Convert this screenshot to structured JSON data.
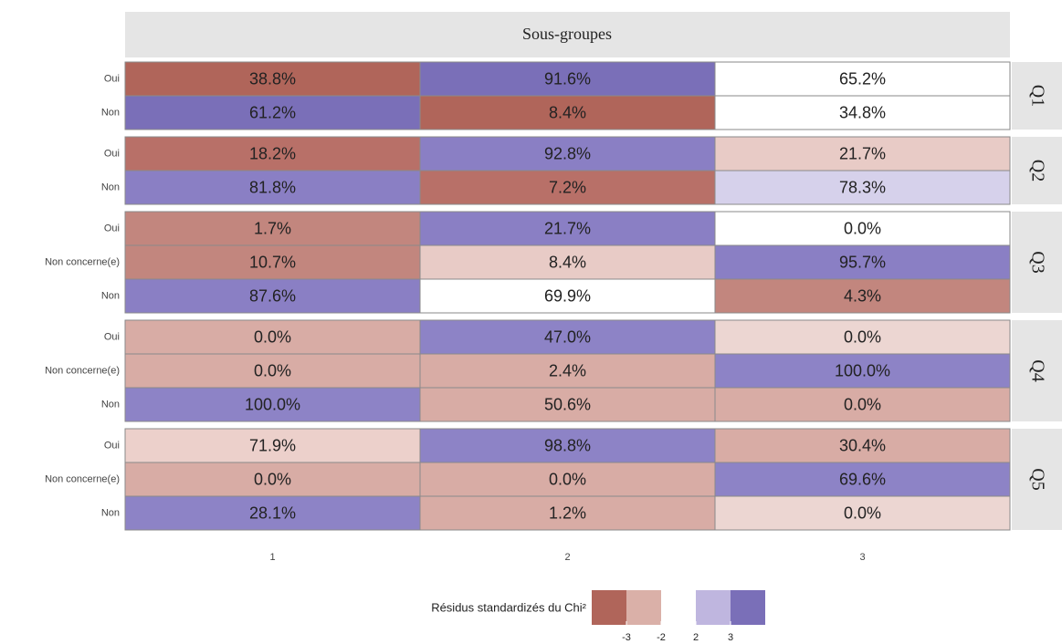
{
  "chart_data": {
    "type": "heatmap",
    "title": "Sous-groupes",
    "columns": [
      "1",
      "2",
      "3"
    ],
    "panels": [
      {
        "name": "Q1",
        "rows": [
          "Oui",
          "Non"
        ],
        "values": [
          [
            38.8,
            91.6,
            65.2
          ],
          [
            61.2,
            8.4,
            34.8
          ]
        ],
        "value_labels": [
          [
            "38.8%",
            "91.6%",
            "65.2%"
          ],
          [
            "61.2%",
            "8.4%",
            "34.8%"
          ]
        ],
        "colors": [
          [
            "#b0655a",
            "#7a6fb8",
            "#ffffff"
          ],
          [
            "#7a6fb8",
            "#b0655a",
            "#ffffff"
          ]
        ]
      },
      {
        "name": "Q2",
        "rows": [
          "Oui",
          "Non"
        ],
        "values": [
          [
            18.2,
            92.8,
            21.7
          ],
          [
            81.8,
            7.2,
            78.3
          ]
        ],
        "value_labels": [
          [
            "18.2%",
            "92.8%",
            "21.7%"
          ],
          [
            "81.8%",
            "7.2%",
            "78.3%"
          ]
        ],
        "colors": [
          [
            "#b87068",
            "#8a7fc4",
            "#e8cbc6"
          ],
          [
            "#8a7fc4",
            "#b87068",
            "#d6d1eb"
          ]
        ]
      },
      {
        "name": "Q3",
        "rows": [
          "Oui",
          "Non concerne(e)",
          "Non"
        ],
        "values": [
          [
            1.7,
            21.7,
            0.0
          ],
          [
            10.7,
            8.4,
            95.7
          ],
          [
            87.6,
            69.9,
            4.3
          ]
        ],
        "value_labels": [
          [
            "1.7%",
            "21.7%",
            "0.0%"
          ],
          [
            "10.7%",
            "8.4%",
            "95.7%"
          ],
          [
            "87.6%",
            "69.9%",
            "4.3%"
          ]
        ],
        "colors": [
          [
            "#c2867e",
            "#8a7fc4",
            "#ffffff"
          ],
          [
            "#c2867e",
            "#e8cbc6",
            "#8a7fc4"
          ],
          [
            "#8a7fc4",
            "#ffffff",
            "#c2867e"
          ]
        ]
      },
      {
        "name": "Q4",
        "rows": [
          "Oui",
          "Non concerne(e)",
          "Non"
        ],
        "values": [
          [
            0.0,
            47.0,
            0.0
          ],
          [
            0.0,
            2.4,
            100.0
          ],
          [
            100.0,
            50.6,
            0.0
          ]
        ],
        "value_labels": [
          [
            "0.0%",
            "47.0%",
            "0.0%"
          ],
          [
            "0.0%",
            "2.4%",
            "100.0%"
          ],
          [
            "100.0%",
            "50.6%",
            "0.0%"
          ]
        ],
        "colors": [
          [
            "#d8aca5",
            "#8d83c6",
            "#ecd6d2"
          ],
          [
            "#d8aca5",
            "#d8aca5",
            "#8d83c6"
          ],
          [
            "#8d83c6",
            "#d8aca5",
            "#d8aca5"
          ]
        ]
      },
      {
        "name": "Q5",
        "rows": [
          "Oui",
          "Non concerne(e)",
          "Non"
        ],
        "values": [
          [
            71.9,
            98.8,
            30.4
          ],
          [
            0.0,
            0.0,
            69.6
          ],
          [
            28.1,
            1.2,
            0.0
          ]
        ],
        "value_labels": [
          [
            "71.9%",
            "98.8%",
            "30.4%"
          ],
          [
            "0.0%",
            "0.0%",
            "69.6%"
          ],
          [
            "28.1%",
            "1.2%",
            "0.0%"
          ]
        ],
        "colors": [
          [
            "#ecd0cb",
            "#8d83c6",
            "#d8aca5"
          ],
          [
            "#d8aca5",
            "#d8aca5",
            "#8d83c6"
          ],
          [
            "#8d83c6",
            "#d8aca5",
            "#ecd6d2"
          ]
        ]
      }
    ],
    "legend": {
      "title": "Résidus standardizés du Chi²",
      "colors": [
        "#b0655a",
        "#dab0a8",
        "#bfb6df",
        "#7a6fb8"
      ],
      "ticks": [
        -3,
        -2,
        2,
        3
      ]
    }
  }
}
